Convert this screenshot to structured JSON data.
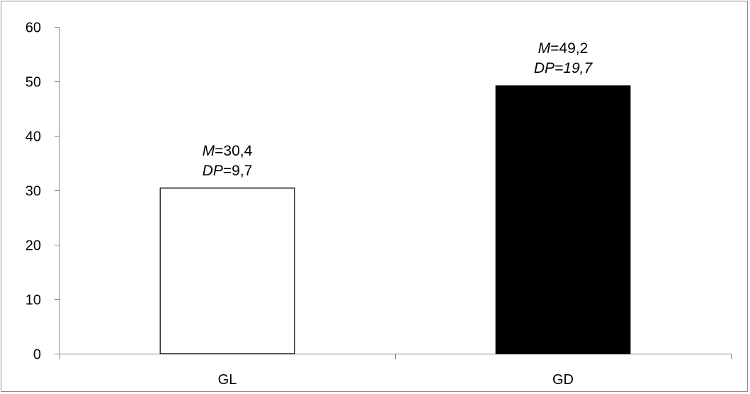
{
  "chart_data": {
    "type": "bar",
    "title": "",
    "xlabel": "",
    "ylabel": "",
    "categories": [
      "GL",
      "GD"
    ],
    "values": [
      30.4,
      49.2
    ],
    "ylim": [
      0,
      60
    ],
    "yticks": [
      0,
      10,
      20,
      30,
      40,
      50,
      60
    ],
    "bar_fills": [
      "#ffffff",
      "#000000"
    ],
    "bar_stroke": "#000000",
    "grid": false,
    "legend": "none",
    "annotations": [
      {
        "category": "GL",
        "m_prefix": "M",
        "m_value": "=30,4",
        "dp_prefix": "DP",
        "dp_value": "=9,7",
        "dp_value_italic": false
      },
      {
        "category": "GD",
        "m_prefix": "M",
        "m_value": "=49,2",
        "dp_prefix": "DP",
        "dp_value": "=19,7",
        "dp_value_italic": true
      }
    ]
  },
  "colors": {
    "axis": "#868686",
    "frame": "#8c8c8c",
    "text": "#000000"
  }
}
